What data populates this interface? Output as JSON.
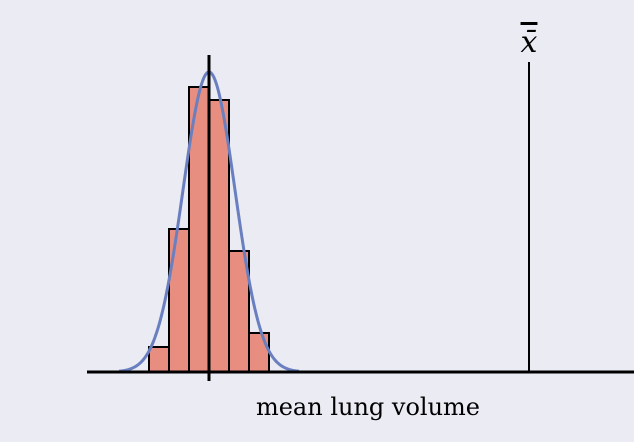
{
  "chart_data": {
    "type": "bar",
    "title": "",
    "xlabel": "mean lung volume",
    "ylabel": "",
    "bin_edges": [
      -3,
      -2,
      -1,
      0,
      1,
      2,
      3
    ],
    "values": [
      25,
      143,
      285,
      272,
      121,
      39
    ],
    "curve": {
      "type": "normal",
      "mean": 0,
      "sd": 1.3,
      "peak": 300
    },
    "center_line": 0,
    "marker": {
      "label": "x̄",
      "x": 16
    },
    "xlim": [
      -6,
      21
    ],
    "ylim": [
      0,
      320
    ],
    "grid": false,
    "colors": {
      "background": "#eaebf3",
      "bars": "#e88e80",
      "curve": "#6a7fbf",
      "lines": "#000000"
    }
  }
}
